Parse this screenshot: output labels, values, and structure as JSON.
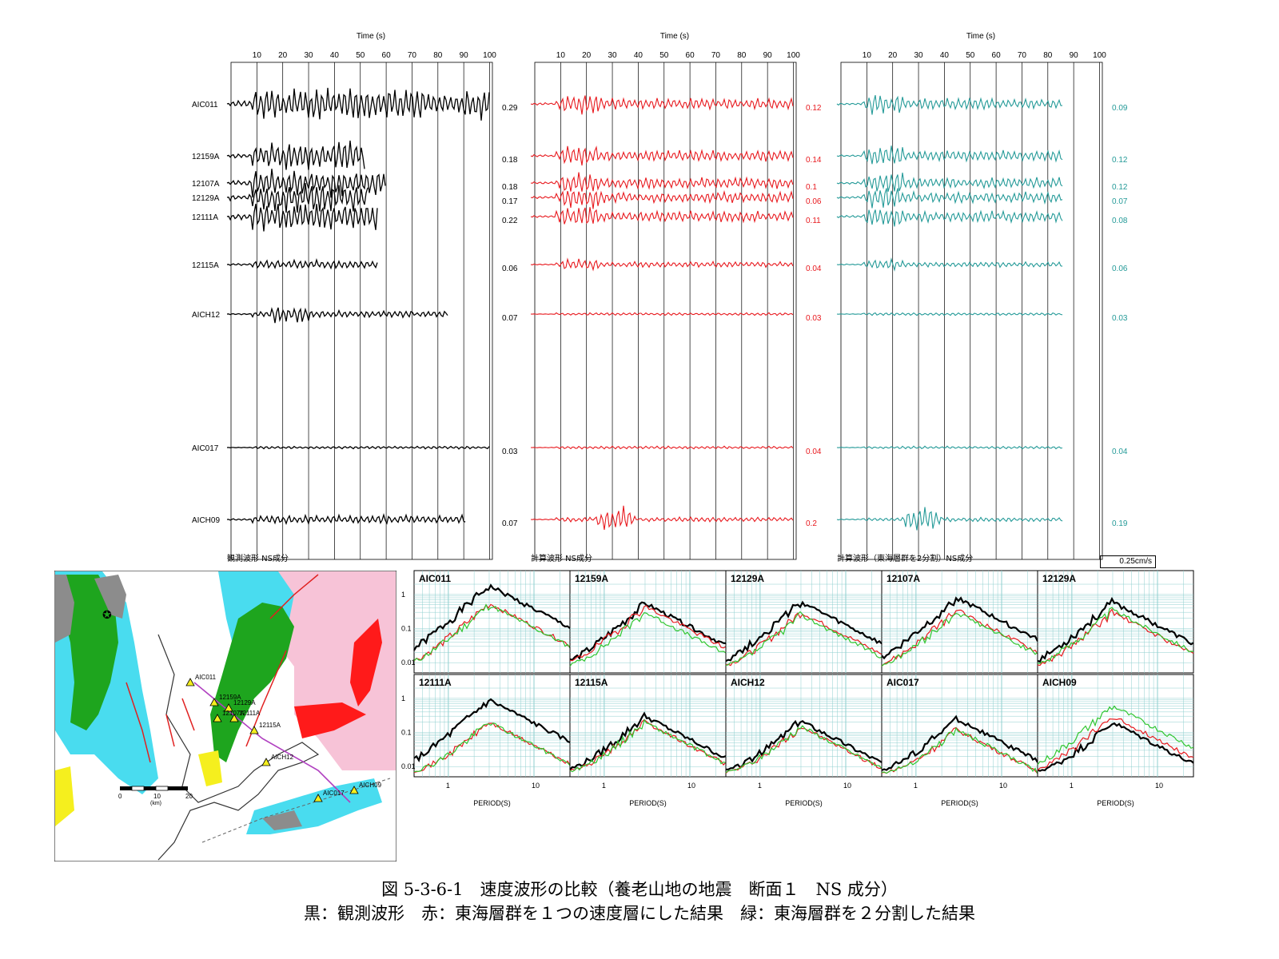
{
  "colors": {
    "observed": "#000000",
    "calc1": "#e8191e",
    "calc2": "#249a98"
  },
  "waveform_panels": [
    {
      "title": "観測波形 NS成分",
      "time_label": "Time (s)",
      "color_key": "observed",
      "ticks": [
        "10",
        "20",
        "30",
        "40",
        "50",
        "60",
        "70",
        "80",
        "90",
        "100"
      ],
      "stations": [
        {
          "name": "AIC011",
          "amp": "0.29",
          "duration": 100,
          "style": "strong"
        },
        {
          "name": "12159A",
          "amp": "0.18",
          "duration": 52,
          "style": "mid"
        },
        {
          "name": "12107A",
          "amp": "0.18",
          "duration": 60,
          "style": "mid"
        },
        {
          "name": "12129A",
          "amp": "0.17",
          "duration": 53,
          "style": "mid"
        },
        {
          "name": "12111A",
          "amp": "0.22",
          "duration": 57,
          "style": "mid"
        },
        {
          "name": "12115A",
          "amp": "0.06",
          "duration": 57,
          "style": "low"
        },
        {
          "name": "AICH12",
          "amp": "0.07",
          "duration": 84,
          "style": "burst"
        },
        {
          "name": "AIC017",
          "amp": "0.03",
          "duration": 100,
          "style": "flat"
        },
        {
          "name": "AICH09",
          "amp": "0.07",
          "duration": 91,
          "style": "low"
        }
      ]
    },
    {
      "title": "計算波形 NS成分",
      "time_label": "Time (s)",
      "color_key": "calc1",
      "ticks": [
        "10",
        "20",
        "30",
        "40",
        "50",
        "60",
        "70",
        "80",
        "90",
        "100"
      ],
      "stations": [
        {
          "name": "AIC011",
          "amp": "0.12",
          "duration": 100,
          "style": "calc"
        },
        {
          "name": "12159A",
          "amp": "0.14",
          "duration": 100,
          "style": "calc"
        },
        {
          "name": "12107A",
          "amp": "0.1",
          "duration": 100,
          "style": "calc"
        },
        {
          "name": "12129A",
          "amp": "0.06",
          "duration": 100,
          "style": "calc"
        },
        {
          "name": "12111A",
          "amp": "0.11",
          "duration": 100,
          "style": "calc"
        },
        {
          "name": "12115A",
          "amp": "0.04",
          "duration": 100,
          "style": "calclow"
        },
        {
          "name": "AICH12",
          "amp": "0.03",
          "duration": 100,
          "style": "flat"
        },
        {
          "name": "AIC017",
          "amp": "0.04",
          "duration": 100,
          "style": "flat"
        },
        {
          "name": "AICH09",
          "amp": "0.2",
          "duration": 100,
          "style": "packet"
        }
      ]
    },
    {
      "title": "計算波形（東海層群を2分割）NS成分",
      "time_label": "Time (s)",
      "color_key": "calc2",
      "ticks": [
        "10",
        "20",
        "30",
        "40",
        "50",
        "60",
        "70",
        "80",
        "90",
        "100"
      ],
      "stations": [
        {
          "name": "AIC011",
          "amp": "0.09",
          "duration": 86,
          "style": "calc"
        },
        {
          "name": "12159A",
          "amp": "0.12",
          "duration": 86,
          "style": "calc"
        },
        {
          "name": "12107A",
          "amp": "0.12",
          "duration": 86,
          "style": "calc"
        },
        {
          "name": "12129A",
          "amp": "0.07",
          "duration": 86,
          "style": "calc"
        },
        {
          "name": "12111A",
          "amp": "0.08",
          "duration": 86,
          "style": "calc"
        },
        {
          "name": "12115A",
          "amp": "0.06",
          "duration": 86,
          "style": "calclow"
        },
        {
          "name": "AICH12",
          "amp": "0.03",
          "duration": 86,
          "style": "flat"
        },
        {
          "name": "AIC017",
          "amp": "0.04",
          "duration": 86,
          "style": "flat"
        },
        {
          "name": "AICH09",
          "amp": "0.19",
          "duration": 86,
          "style": "packet"
        }
      ]
    }
  ],
  "scale_label": "0.25cm/s",
  "spectra": {
    "xlabel": "PERIOD(S)",
    "xticks": [
      "1",
      "10"
    ],
    "yticks": [
      "1",
      "0.1",
      "0.01"
    ],
    "panels": [
      {
        "name": "AIC011",
        "peaks": [
          1.8,
          0.55,
          0.5
        ]
      },
      {
        "name": "12159A",
        "peaks": [
          0.55,
          0.45,
          0.3
        ]
      },
      {
        "name": "12129A",
        "peaks": [
          0.6,
          0.3,
          0.25
        ]
      },
      {
        "name": "12107A",
        "peaks": [
          0.8,
          0.35,
          0.3
        ]
      },
      {
        "name": "12129A",
        "peaks": [
          0.6,
          0.3,
          0.35
        ]
      },
      {
        "name": "12111A",
        "peaks": [
          0.9,
          0.2,
          0.2
        ]
      },
      {
        "name": "12115A",
        "peaks": [
          0.3,
          0.2,
          0.2
        ]
      },
      {
        "name": "AICH12",
        "peaks": [
          0.22,
          0.15,
          0.15
        ]
      },
      {
        "name": "AIC017",
        "peaks": [
          0.25,
          0.12,
          0.12
        ]
      },
      {
        "name": "AICH09",
        "peaks": [
          0.2,
          0.3,
          0.6
        ]
      }
    ]
  },
  "map": {
    "stations": [
      "AIC011",
      "12159A",
      "12129A",
      "12111A",
      "12107A",
      "12115A",
      "AICH12",
      "AIC017",
      "AICH09"
    ],
    "scale_labels": [
      "0",
      "10",
      "20"
    ],
    "scale_unit": "(km)"
  },
  "caption": {
    "line1": "図 5-3-6-1　速度波形の比較（養老山地の地震　断面１　NS 成分）",
    "line2": "黒：観測波形　赤：東海層群を１つの速度層にした結果　緑：東海層群を２分割した結果"
  }
}
